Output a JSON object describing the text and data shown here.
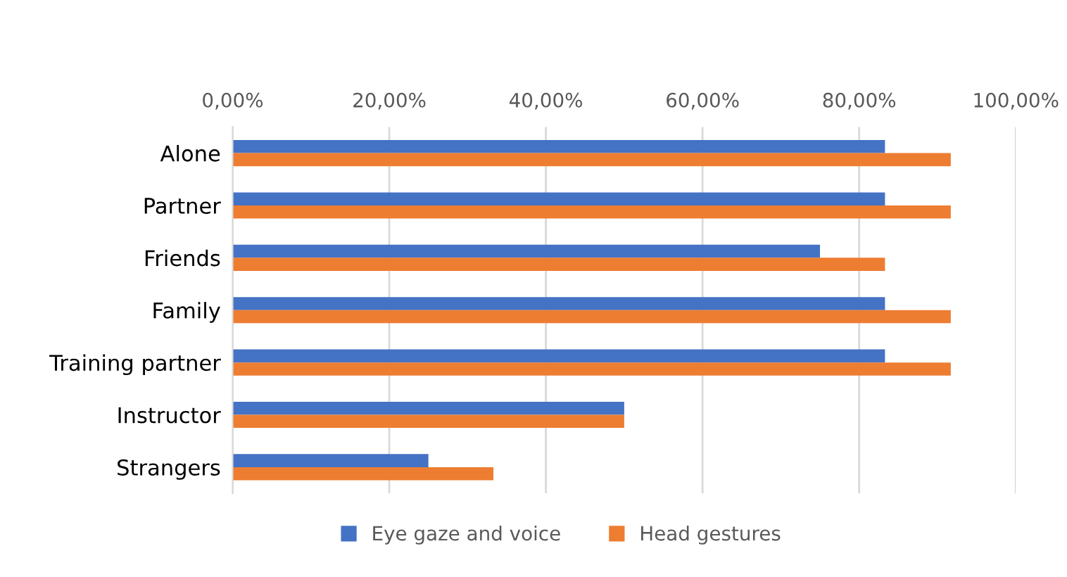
{
  "chart_data": {
    "type": "bar",
    "orientation": "horizontal",
    "categories": [
      "Alone",
      "Partner",
      "Friends",
      "Family",
      "Training partner",
      "Instructor",
      "Strangers"
    ],
    "series": [
      {
        "name": "Eye gaze and voice",
        "color": "#4472c4",
        "values": [
          83.3,
          83.3,
          75,
          83.3,
          83.3,
          50,
          25
        ]
      },
      {
        "name": "Head gestures",
        "color": "#ed7d31",
        "values": [
          91.7,
          91.7,
          83.3,
          91.7,
          91.7,
          50,
          33.3
        ]
      }
    ],
    "xlim": [
      0,
      100
    ],
    "xticks": [
      {
        "value": 0,
        "label": "0,00%"
      },
      {
        "value": 20,
        "label": "20,00%"
      },
      {
        "value": 40,
        "label": "40,00%"
      },
      {
        "value": 60,
        "label": "60,00%"
      },
      {
        "value": 80,
        "label": "80,00%"
      },
      {
        "value": 100,
        "label": "100,00%"
      }
    ],
    "grid": "x",
    "legend": "bottom"
  }
}
